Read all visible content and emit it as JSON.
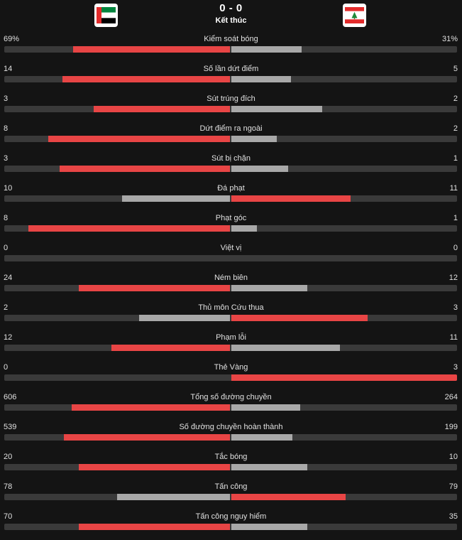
{
  "match": {
    "score": "0 - 0",
    "status": "Kết thúc",
    "home_flag_icon": "uae-flag-icon",
    "away_flag_icon": "lebanon-flag-icon"
  },
  "colors": {
    "leader": "#e84545",
    "trailer": "#a8a8a8",
    "track": "#3a3a3a"
  },
  "stats": [
    {
      "label": "Kiểm soát bóng",
      "home": "69%",
      "away": "31%",
      "home_num": 69,
      "away_num": 31
    },
    {
      "label": "Số lần dứt điểm",
      "home": "14",
      "away": "5",
      "home_num": 14,
      "away_num": 5
    },
    {
      "label": "Sút trúng đích",
      "home": "3",
      "away": "2",
      "home_num": 3,
      "away_num": 2
    },
    {
      "label": "Dứt điểm ra ngoài",
      "home": "8",
      "away": "2",
      "home_num": 8,
      "away_num": 2
    },
    {
      "label": "Sút bị chặn",
      "home": "3",
      "away": "1",
      "home_num": 3,
      "away_num": 1
    },
    {
      "label": "Đá phạt",
      "home": "10",
      "away": "11",
      "home_num": 10,
      "away_num": 11
    },
    {
      "label": "Phạt góc",
      "home": "8",
      "away": "1",
      "home_num": 8,
      "away_num": 1
    },
    {
      "label": "Việt vị",
      "home": "0",
      "away": "0",
      "home_num": 0,
      "away_num": 0
    },
    {
      "label": "Ném biên",
      "home": "24",
      "away": "12",
      "home_num": 24,
      "away_num": 12
    },
    {
      "label": "Thủ môn Cứu thua",
      "home": "2",
      "away": "3",
      "home_num": 2,
      "away_num": 3
    },
    {
      "label": "Phạm lỗi",
      "home": "12",
      "away": "11",
      "home_num": 12,
      "away_num": 11
    },
    {
      "label": "Thẻ Vàng",
      "home": "0",
      "away": "3",
      "home_num": 0,
      "away_num": 3
    },
    {
      "label": "Tổng số đường chuyền",
      "home": "606",
      "away": "264",
      "home_num": 606,
      "away_num": 264
    },
    {
      "label": "Số đường chuyền hoàn thành",
      "home": "539",
      "away": "199",
      "home_num": 539,
      "away_num": 199
    },
    {
      "label": "Tắc bóng",
      "home": "20",
      "away": "10",
      "home_num": 20,
      "away_num": 10
    },
    {
      "label": "Tấn công",
      "home": "78",
      "away": "79",
      "home_num": 78,
      "away_num": 79
    },
    {
      "label": "Tấn công nguy hiểm",
      "home": "70",
      "away": "35",
      "home_num": 70,
      "away_num": 35
    }
  ]
}
